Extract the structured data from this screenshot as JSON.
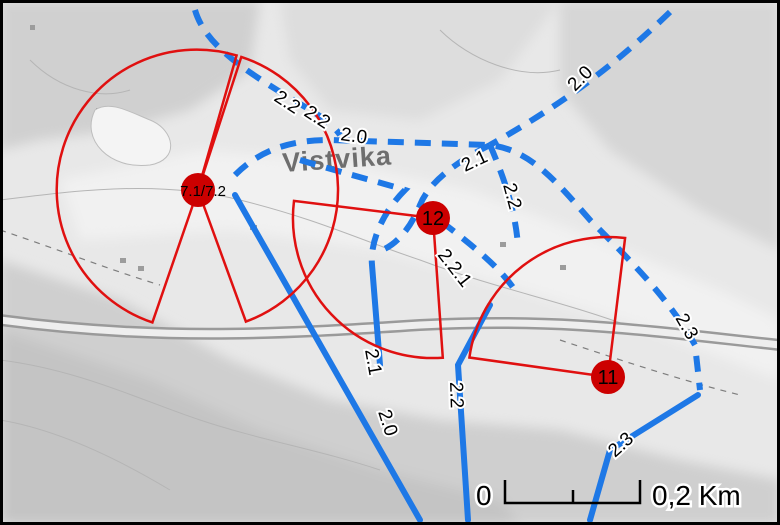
{
  "map": {
    "place_name": "Vistvika",
    "colors": {
      "route": "#1e78e6",
      "sector": "#e01010",
      "site": "#cc0000",
      "background": "#e6e6e6",
      "road": "#b8b8b8"
    },
    "planned_route_labels": [
      "2.2",
      "2.2",
      "2.0",
      "2.0",
      "2.1",
      "2.2",
      "2.2.1",
      "2.3"
    ],
    "existing_route_labels": [
      "2.1",
      "2.0",
      "2.2",
      "2.3"
    ],
    "sites": [
      {
        "id": "site-7",
        "label": "7.1/7.2"
      },
      {
        "id": "site-12",
        "label": "12"
      },
      {
        "id": "site-11",
        "label": "11"
      }
    ],
    "scale": {
      "zero": "0",
      "end": "0,2 Km"
    }
  }
}
